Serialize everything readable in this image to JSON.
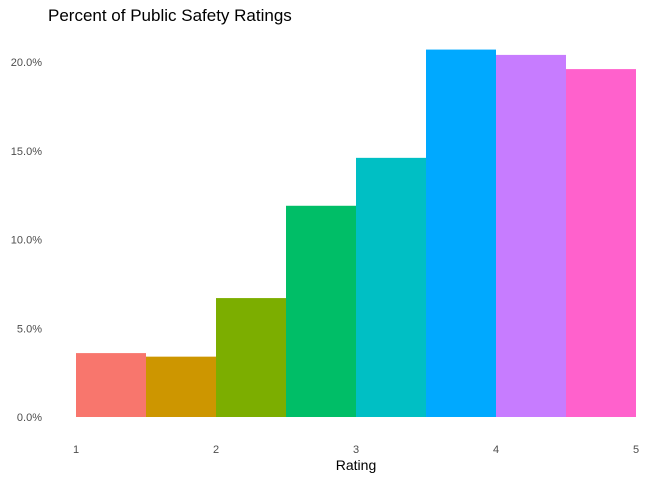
{
  "chart_data": {
    "type": "bar",
    "title": "Percent of Public Safety Ratings",
    "xlabel": "Rating",
    "ylabel": "",
    "x_ticks": [
      1,
      2,
      3,
      4,
      5
    ],
    "y_ticks": [
      "0.0%",
      "5.0%",
      "10.0%",
      "15.0%",
      "20.0%"
    ],
    "y_tick_values": [
      0,
      5,
      10,
      15,
      20
    ],
    "xlim": [
      1,
      5
    ],
    "ylim": [
      0,
      21
    ],
    "grid": false,
    "legend": "none",
    "bin_width": 0.5,
    "bins": [
      {
        "start": 1.0,
        "end": 1.5,
        "value": 3.6,
        "color": "#F8766D"
      },
      {
        "start": 1.5,
        "end": 2.0,
        "value": 3.4,
        "color": "#CD9600"
      },
      {
        "start": 2.0,
        "end": 2.5,
        "value": 6.7,
        "color": "#7CAE00"
      },
      {
        "start": 2.5,
        "end": 3.0,
        "value": 11.9,
        "color": "#00BE67"
      },
      {
        "start": 3.0,
        "end": 3.5,
        "value": 14.6,
        "color": "#00BFC4"
      },
      {
        "start": 3.5,
        "end": 4.0,
        "value": 20.7,
        "color": "#00A9FF"
      },
      {
        "start": 4.0,
        "end": 4.5,
        "value": 20.4,
        "color": "#C77CFF"
      },
      {
        "start": 4.5,
        "end": 5.0,
        "value": 19.6,
        "color": "#FF61CC"
      }
    ]
  }
}
